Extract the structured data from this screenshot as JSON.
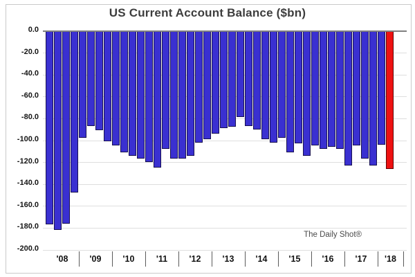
{
  "chart_data": {
    "type": "bar",
    "title": "US Current Account Balance ($bn)",
    "attribution": "The Daily Shot®",
    "ylim": [
      -200,
      0
    ],
    "ytick_labels": [
      "0.0",
      "-20.0",
      "-40.0",
      "-60.0",
      "-80.0",
      "-100.0",
      "-120.0",
      "-140.0",
      "-160.0",
      "-180.0",
      "-200.0"
    ],
    "grid": "horizontal",
    "legend": "none",
    "highlight_note": "last bar highlighted red",
    "colors": {
      "bar": "#3a30d1",
      "bar_border": "#17104f",
      "highlight": "#ee1111",
      "highlight_border": "#5d0404",
      "gridline": "#dedede",
      "zero_axis": "#7f7f7f"
    },
    "groups": [
      {
        "year": "'08",
        "values": [
          -176,
          -181,
          -175,
          -147
        ]
      },
      {
        "year": "'09",
        "values": [
          -97,
          -86,
          -90,
          -100
        ]
      },
      {
        "year": "'10",
        "values": [
          -104,
          -110,
          -113,
          -116
        ]
      },
      {
        "year": "'11",
        "values": [
          -119,
          -124,
          -107,
          -116
        ]
      },
      {
        "year": "'12",
        "values": [
          -116,
          -113,
          -101,
          -98
        ]
      },
      {
        "year": "'13",
        "values": [
          -93,
          -88,
          -87,
          -78
        ]
      },
      {
        "year": "'14",
        "values": [
          -86,
          -89,
          -98,
          -101
        ]
      },
      {
        "year": "'15",
        "values": [
          -97,
          -110,
          -102,
          -113
        ]
      },
      {
        "year": "'16",
        "values": [
          -104,
          -107,
          -105,
          -107
        ]
      },
      {
        "year": "'17",
        "values": [
          -122,
          -104,
          -116,
          -122
        ]
      },
      {
        "year": "'18",
        "values": [
          -103,
          -125
        ]
      }
    ]
  }
}
